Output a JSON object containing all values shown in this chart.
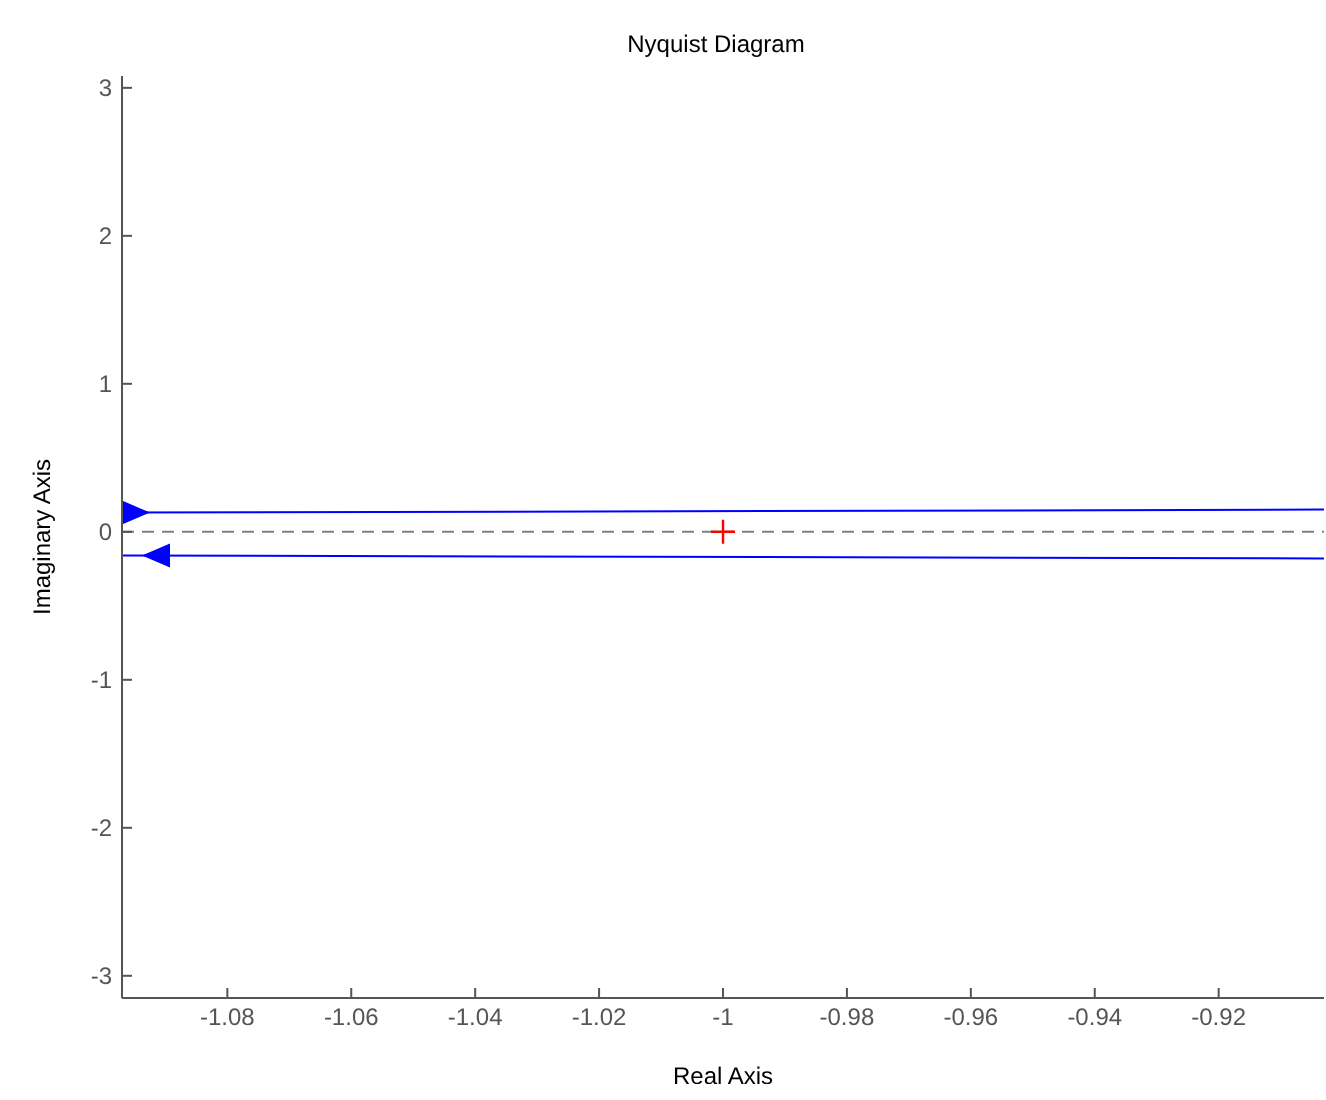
{
  "chart_data": {
    "type": "line",
    "title": "Nyquist Diagram",
    "xlabel": "Real Axis",
    "ylabel": "Imaginary Axis",
    "xlim": [
      -1.097,
      -0.903
    ],
    "xticks": [
      -1.08,
      -1.06,
      -1.04,
      -1.02,
      -1,
      -0.98,
      -0.96,
      -0.94,
      -0.92
    ],
    "ylim": [
      -3.15,
      3.08
    ],
    "yticks": [
      -3,
      -2,
      -1,
      0,
      1,
      2,
      3
    ],
    "marker": "none",
    "line_style": "solid",
    "series": [
      {
        "color": "#0000ff",
        "x": [
          -1.097,
          -0.903
        ],
        "values": [
          0.13,
          0.15
        ]
      },
      {
        "color": "#0000ff",
        "x": [
          -0.903,
          -1.097
        ],
        "values": [
          -0.18,
          -0.16
        ]
      },
      {
        "type": "scatter",
        "marker": "cross",
        "color": "#ff0000",
        "x": [
          -1
        ],
        "values": [
          0
        ]
      }
    ],
    "ref_lines": [
      {
        "axis": "y",
        "value": 0,
        "color": "#808080",
        "line_style": "dashed"
      }
    ]
  }
}
